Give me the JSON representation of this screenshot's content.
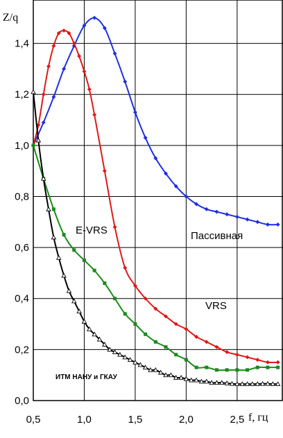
{
  "chart_data": {
    "type": "line",
    "xlabel": "f, гц",
    "ylabel": "Z/q",
    "xlim": [
      0.5,
      2.95
    ],
    "ylim": [
      0.0,
      1.57
    ],
    "x_ticks": [
      "0,5",
      "1,0",
      "1,5",
      "2,0",
      "2,5"
    ],
    "y_ticks": [
      "0,0",
      "0,2",
      "0,4",
      "0,6",
      "0,8",
      "1,0",
      "1,2",
      "1,4"
    ],
    "grid": true,
    "series": [
      {
        "name": "Пассивная",
        "color": "#1f2fe0",
        "marker": "diamond",
        "x": [
          0.5,
          0.6,
          0.7,
          0.8,
          0.9,
          1.0,
          1.1,
          1.2,
          1.3,
          1.4,
          1.5,
          1.6,
          1.7,
          1.8,
          1.9,
          2.0,
          2.1,
          2.2,
          2.3,
          2.4,
          2.5,
          2.6,
          2.7,
          2.8,
          2.9
        ],
        "y": [
          1.0,
          1.09,
          1.19,
          1.3,
          1.39,
          1.47,
          1.5,
          1.46,
          1.36,
          1.25,
          1.13,
          1.03,
          0.95,
          0.89,
          0.84,
          0.8,
          0.77,
          0.75,
          0.74,
          0.73,
          0.72,
          0.71,
          0.7,
          0.69,
          0.69
        ]
      },
      {
        "name": "VRS",
        "color": "#e01818",
        "marker": "diamond",
        "x": [
          0.5,
          0.55,
          0.6,
          0.65,
          0.7,
          0.75,
          0.8,
          0.85,
          0.9,
          0.95,
          1.0,
          1.05,
          1.1,
          1.2,
          1.3,
          1.4,
          1.5,
          1.6,
          1.7,
          1.8,
          1.9,
          2.0,
          2.1,
          2.2,
          2.3,
          2.4,
          2.5,
          2.6,
          2.7,
          2.8,
          2.9
        ],
        "y": [
          1.0,
          1.08,
          1.2,
          1.31,
          1.39,
          1.44,
          1.45,
          1.44,
          1.4,
          1.35,
          1.29,
          1.22,
          1.12,
          0.9,
          0.68,
          0.52,
          0.45,
          0.4,
          0.36,
          0.33,
          0.3,
          0.28,
          0.25,
          0.23,
          0.21,
          0.19,
          0.18,
          0.17,
          0.16,
          0.15,
          0.15
        ]
      },
      {
        "name": "E-VRS",
        "color": "#1a8a1a",
        "marker": "square",
        "x": [
          0.5,
          0.6,
          0.7,
          0.8,
          0.9,
          1.0,
          1.1,
          1.2,
          1.3,
          1.4,
          1.5,
          1.6,
          1.7,
          1.8,
          1.9,
          2.0,
          2.1,
          2.2,
          2.3,
          2.4,
          2.5,
          2.6,
          2.7,
          2.8,
          2.9
        ],
        "y": [
          1.0,
          0.87,
          0.75,
          0.65,
          0.59,
          0.55,
          0.51,
          0.46,
          0.4,
          0.34,
          0.3,
          0.26,
          0.23,
          0.21,
          0.18,
          0.16,
          0.13,
          0.13,
          0.12,
          0.12,
          0.12,
          0.12,
          0.13,
          0.13,
          0.13
        ]
      },
      {
        "name": "ИТМ НАНУ и ГКАУ",
        "color": "#000000",
        "marker": "triangle",
        "x": [
          0.5,
          0.55,
          0.6,
          0.65,
          0.7,
          0.75,
          0.8,
          0.85,
          0.9,
          0.95,
          1.0,
          1.05,
          1.1,
          1.15,
          1.2,
          1.25,
          1.3,
          1.35,
          1.4,
          1.45,
          1.5,
          1.55,
          1.6,
          1.65,
          1.7,
          1.75,
          1.8,
          1.85,
          1.9,
          1.95,
          2.0,
          2.05,
          2.1,
          2.15,
          2.2,
          2.25,
          2.3,
          2.35,
          2.4,
          2.45,
          2.5,
          2.55,
          2.6,
          2.65,
          2.7,
          2.75,
          2.8,
          2.85,
          2.9
        ],
        "y": [
          1.21,
          1.02,
          0.87,
          0.75,
          0.64,
          0.56,
          0.49,
          0.43,
          0.39,
          0.35,
          0.31,
          0.28,
          0.26,
          0.24,
          0.22,
          0.2,
          0.19,
          0.18,
          0.17,
          0.16,
          0.15,
          0.14,
          0.13,
          0.12,
          0.12,
          0.11,
          0.1,
          0.1,
          0.09,
          0.09,
          0.085,
          0.08,
          0.08,
          0.075,
          0.075,
          0.07,
          0.07,
          0.07,
          0.068,
          0.066,
          0.065,
          0.065,
          0.065,
          0.065,
          0.065,
          0.066,
          0.066,
          0.065,
          0.065
        ]
      }
    ]
  }
}
